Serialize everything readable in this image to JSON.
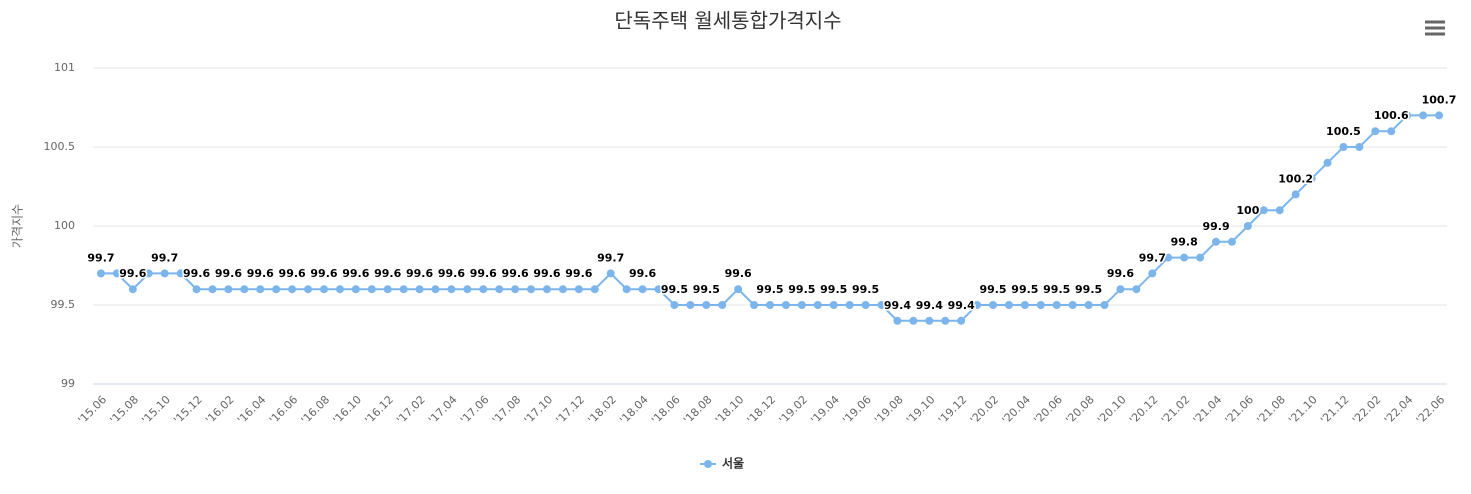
{
  "chart_data": {
    "type": "line",
    "title": "단독주택 월세통합가격지수",
    "y_label": "가격지수",
    "categories": [
      "'15.06",
      null,
      "'15.08",
      null,
      "'15.10",
      null,
      "'15.12",
      null,
      "'16.02",
      null,
      "'16.04",
      null,
      "'16.06",
      null,
      "'16.08",
      null,
      "'16.10",
      null,
      "'16.12",
      null,
      "'17.02",
      null,
      "'17.04",
      null,
      "'17.06",
      null,
      "'17.08",
      null,
      "'17.10",
      null,
      "'17.12",
      null,
      "'18.02",
      null,
      "'18.04",
      null,
      "'18.06",
      null,
      "'18.08",
      null,
      "'18.10",
      null,
      "'18.12",
      null,
      "'19.02",
      null,
      "'19.04",
      null,
      "'19.06",
      null,
      "'19.08",
      null,
      "'19.10",
      null,
      "'19.12",
      null,
      "'20.02",
      null,
      "'20.04",
      null,
      "'20.06",
      null,
      "'20.08",
      null,
      "'20.10",
      null,
      "'20.12",
      null,
      "'21.02",
      null,
      "'21.04",
      null,
      "'21.06",
      null,
      "'21.08",
      null,
      "'21.10",
      null,
      "'21.12",
      null,
      "'22.02",
      null,
      "'22.04",
      null,
      "'22.06"
    ],
    "series": [
      {
        "name": "서울",
        "color": "#7cb5ec",
        "values": [
          99.7,
          99.7,
          99.6,
          99.7,
          99.7,
          99.7,
          99.6,
          99.6,
          99.6,
          99.6,
          99.6,
          99.6,
          99.6,
          99.6,
          99.6,
          99.6,
          99.6,
          99.6,
          99.6,
          99.6,
          99.6,
          99.6,
          99.6,
          99.6,
          99.6,
          99.6,
          99.6,
          99.6,
          99.6,
          99.6,
          99.6,
          99.6,
          99.7,
          99.6,
          99.6,
          99.6,
          99.5,
          99.5,
          99.5,
          99.5,
          99.6,
          99.5,
          99.5,
          99.5,
          99.5,
          99.5,
          99.5,
          99.5,
          99.5,
          99.5,
          99.4,
          99.4,
          99.4,
          99.4,
          99.4,
          99.5,
          99.5,
          99.5,
          99.5,
          99.5,
          99.5,
          99.5,
          99.5,
          99.5,
          99.6,
          99.6,
          99.7,
          99.8,
          99.8,
          99.8,
          99.9,
          99.9,
          100,
          100.1,
          100.1,
          100.2,
          100.3,
          100.4,
          100.5,
          100.5,
          100.6,
          100.6,
          100.7,
          100.7,
          100.7
        ]
      }
    ],
    "ylim": [
      99,
      101
    ],
    "yticks": [
      99,
      99.5,
      100,
      100.5,
      101
    ],
    "grid": true,
    "legend": "bottom"
  }
}
